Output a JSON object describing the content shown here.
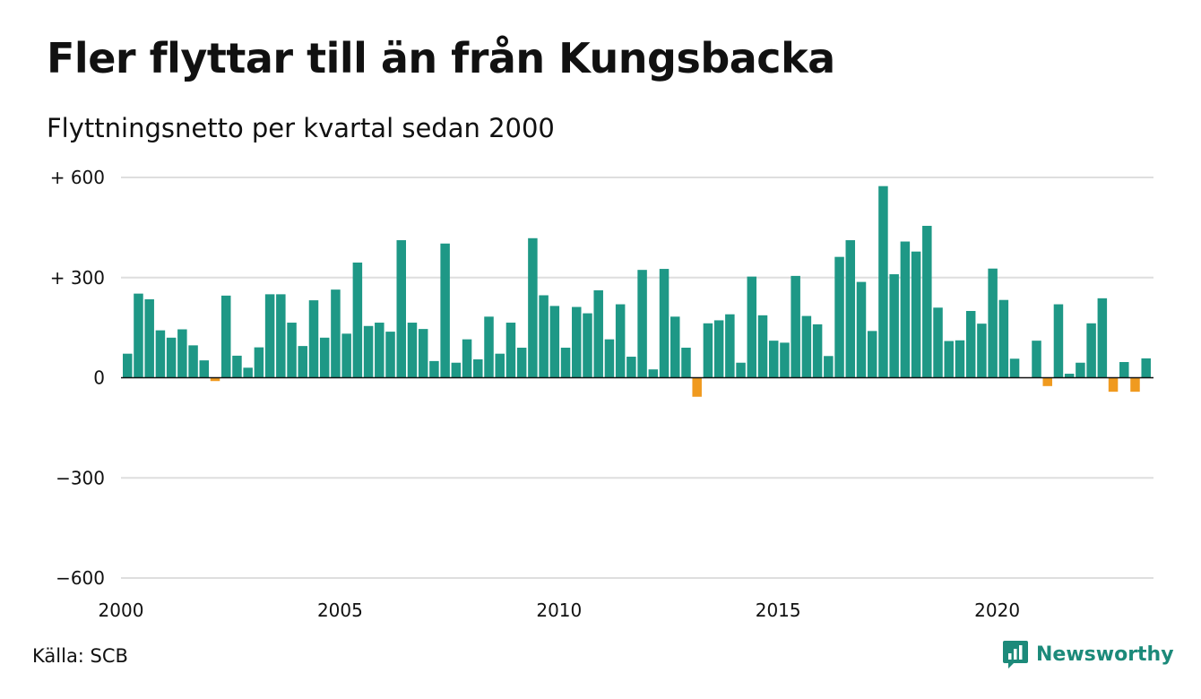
{
  "title": "Fler flyttar till än från Kungsbacka",
  "subtitle": "Flyttningsnetto per kvartal sedan 2000",
  "source": "Källa: SCB",
  "brand": {
    "name": "Newsworthy",
    "icon": "newsworthy-logo-icon"
  },
  "colors": {
    "positive": "#1e9886",
    "negative": "#f09a1f",
    "grid": "#dedede",
    "zero": "#111111"
  },
  "chart_data": {
    "type": "bar",
    "x_start": 2000,
    "periods_per_year": 4,
    "ylim": [
      -600,
      600
    ],
    "yticks": [
      {
        "value": 600,
        "label": "+ 600"
      },
      {
        "value": 300,
        "label": "+ 300"
      },
      {
        "value": 0,
        "label": "0"
      },
      {
        "value": -300,
        "label": "−300"
      },
      {
        "value": -600,
        "label": "−600"
      }
    ],
    "xticks": [
      "2000",
      "2005",
      "2010",
      "2015",
      "2020"
    ],
    "values": [
      72,
      252,
      235,
      142,
      120,
      145,
      97,
      52,
      -10,
      246,
      66,
      30,
      91,
      250,
      250,
      165,
      95,
      232,
      120,
      264,
      132,
      345,
      155,
      165,
      138,
      412,
      165,
      146,
      50,
      402,
      45,
      115,
      55,
      183,
      72,
      165,
      90,
      418,
      247,
      215,
      90,
      212,
      193,
      262,
      115,
      220,
      63,
      323,
      25,
      326,
      183,
      90,
      -57,
      163,
      172,
      190,
      45,
      303,
      187,
      111,
      105,
      305,
      185,
      160,
      65,
      362,
      412,
      287,
      140,
      574,
      310,
      408,
      378,
      455,
      210,
      110,
      112,
      200,
      162,
      327,
      233,
      57,
      0,
      111,
      -25,
      220,
      12,
      45,
      163,
      238,
      -42,
      47,
      -42,
      58
    ]
  }
}
